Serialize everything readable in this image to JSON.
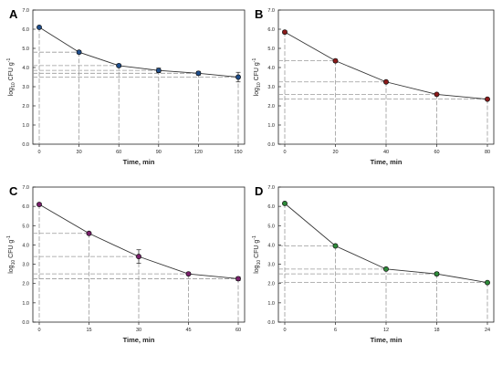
{
  "chart_data": [
    {
      "type": "line",
      "panel_label": "A",
      "xlabel": "Time, min",
      "ylabel": "log10 CFU g-1",
      "xlim": [
        0,
        150
      ],
      "ylim": [
        0.0,
        7.0
      ],
      "x": [
        0,
        30,
        60,
        90,
        120,
        150
      ],
      "x_ticks": [
        "0",
        "30",
        "60",
        "90",
        "120",
        "150"
      ],
      "y_ticks": [
        "0.0",
        "1.0",
        "2.0",
        "3.0",
        "4.0",
        "5.0",
        "6.0",
        "7.0"
      ],
      "series": [
        {
          "values": [
            6.1,
            4.8,
            4.1,
            3.85,
            3.7,
            3.5
          ],
          "errors": [
            0.05,
            0.08,
            0.08,
            0.12,
            0.1,
            0.25
          ]
        }
      ],
      "marker_color": "#1f4e8c",
      "grid": "dashed drop lines"
    },
    {
      "type": "line",
      "panel_label": "B",
      "xlabel": "Time, min",
      "ylabel": "log10 CFU g-1",
      "xlim": [
        0,
        80
      ],
      "ylim": [
        0.0,
        7.0
      ],
      "x": [
        0,
        20,
        40,
        60,
        80
      ],
      "x_ticks": [
        "0",
        "20",
        "40",
        "60",
        "80"
      ],
      "y_ticks": [
        "0.0",
        "1.0",
        "2.0",
        "3.0",
        "4.0",
        "5.0",
        "6.0",
        "7.0"
      ],
      "series": [
        {
          "values": [
            5.85,
            4.35,
            3.25,
            2.6,
            2.35
          ],
          "errors": [
            0.08,
            0.08,
            0.05,
            0.05,
            0.05
          ]
        }
      ],
      "marker_color": "#8b1a1a",
      "grid": "dashed drop lines"
    },
    {
      "type": "line",
      "panel_label": "C",
      "xlabel": "Time, min",
      "ylabel": "log10 CFU g-1",
      "xlim": [
        0,
        60
      ],
      "ylim": [
        0.0,
        7.0
      ],
      "x": [
        0,
        15,
        30,
        45,
        60
      ],
      "x_ticks": [
        "0",
        "15",
        "30",
        "45",
        "60"
      ],
      "y_ticks": [
        "0.0",
        "1.0",
        "2.0",
        "3.0",
        "4.0",
        "5.0",
        "6.0",
        "7.0"
      ],
      "series": [
        {
          "values": [
            6.1,
            4.6,
            3.4,
            2.5,
            2.25
          ],
          "errors": [
            0.08,
            0.05,
            0.35,
            0.05,
            0.1
          ]
        }
      ],
      "marker_color": "#7a1f6b",
      "grid": "dashed drop lines"
    },
    {
      "type": "line",
      "panel_label": "D",
      "xlabel": "Time, min",
      "ylabel": "log10 CFU g-1",
      "xlim": [
        0,
        24
      ],
      "ylim": [
        0.0,
        7.0
      ],
      "x": [
        0,
        6,
        12,
        18,
        24
      ],
      "x_ticks": [
        "0",
        "6",
        "12",
        "18",
        "24"
      ],
      "y_ticks": [
        "0.0",
        "1.0",
        "2.0",
        "3.0",
        "4.0",
        "5.0",
        "6.0",
        "7.0"
      ],
      "series": [
        {
          "values": [
            6.15,
            3.95,
            2.75,
            2.5,
            2.05
          ],
          "errors": [
            0.05,
            0.05,
            0.05,
            0.08,
            0.05
          ]
        }
      ],
      "marker_color": "#2e8b3a",
      "grid": "dashed drop lines"
    }
  ]
}
